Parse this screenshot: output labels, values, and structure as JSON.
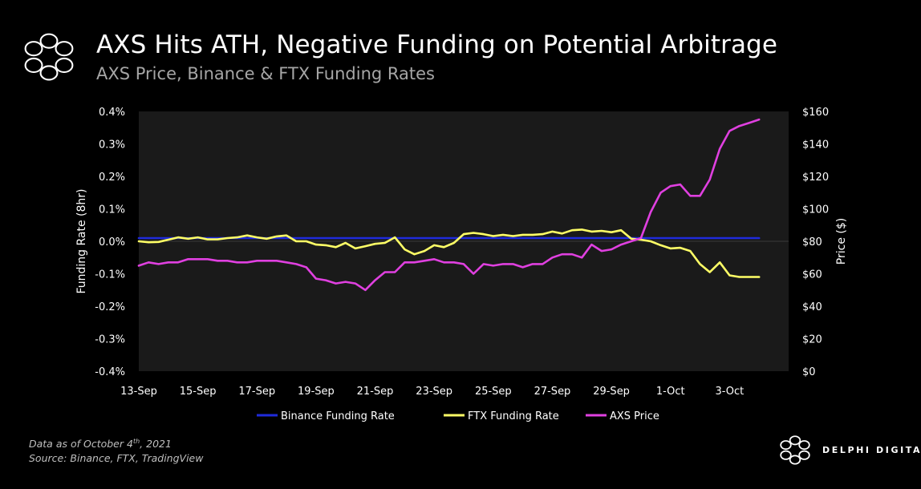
{
  "header": {
    "title": "AXS Hits ATH, Negative Funding on Potential Arbitrage",
    "subtitle": "AXS Price, Binance & FTX Funding Rates"
  },
  "footer": {
    "data_as_of_prefix": "Data as of October 4",
    "data_as_of_sup": "th",
    "data_as_of_suffix": ", 2021",
    "source": "Source: Binance, FTX, TradingView"
  },
  "brand": {
    "name": "DELPHI DIGITAL"
  },
  "chart_data": {
    "type": "line",
    "title": "AXS Hits ATH, Negative Funding on Potential Arbitrage",
    "subtitle": "AXS Price, Binance & FTX Funding Rates",
    "ylabel": "Funding Rate (8hr)",
    "y2label": "Price ($)",
    "ylim": [
      -0.4,
      0.4
    ],
    "y2lim": [
      0,
      160
    ],
    "xlim": [
      0,
      22
    ],
    "x_ticks": [
      {
        "x": 0,
        "label": "13-Sep"
      },
      {
        "x": 2,
        "label": "15-Sep"
      },
      {
        "x": 4,
        "label": "17-Sep"
      },
      {
        "x": 6,
        "label": "19-Sep"
      },
      {
        "x": 8,
        "label": "21-Sep"
      },
      {
        "x": 10,
        "label": "23-Sep"
      },
      {
        "x": 12,
        "label": "25-Sep"
      },
      {
        "x": 14,
        "label": "27-Sep"
      },
      {
        "x": 16,
        "label": "29-Sep"
      },
      {
        "x": 18,
        "label": "1-Oct"
      },
      {
        "x": 20,
        "label": "3-Oct"
      }
    ],
    "y_ticks": [
      "0.4%",
      "0.3%",
      "0.2%",
      "0.1%",
      "0.0%",
      "-0.1%",
      "-0.2%",
      "-0.3%",
      "-0.4%"
    ],
    "y2_ticks": [
      "$160",
      "$140",
      "$120",
      "$100",
      "$80",
      "$60",
      "$40",
      "$20",
      "$0"
    ],
    "legend_position": "bottom",
    "grid": false,
    "series": [
      {
        "name": "Binance Funding Rate",
        "axis": "left",
        "color": "#1f2bdb",
        "x": [
          0,
          0.33,
          0.67,
          1,
          1.33,
          1.67,
          2,
          2.33,
          2.67,
          3,
          3.33,
          3.67,
          4,
          4.33,
          4.67,
          5,
          5.33,
          5.67,
          6,
          6.33,
          6.67,
          7,
          7.33,
          7.67,
          8,
          8.33,
          8.67,
          9,
          9.33,
          9.67,
          10,
          10.33,
          10.67,
          11,
          11.33,
          11.67,
          12,
          12.33,
          12.67,
          13,
          13.33,
          13.67,
          14,
          14.33,
          14.67,
          15,
          15.33,
          15.67,
          16,
          16.33,
          16.67,
          17,
          17.33,
          17.67,
          18,
          18.33,
          18.67,
          19,
          19.33,
          19.67,
          20,
          20.33,
          20.67,
          21
        ],
        "values": [
          0.01,
          0.01,
          0.01,
          0.01,
          0.01,
          0.01,
          0.01,
          0.01,
          0.01,
          0.01,
          0.01,
          0.01,
          0.01,
          0.01,
          0.01,
          0.01,
          0.01,
          0.01,
          0.01,
          0.01,
          0.01,
          0.01,
          0.01,
          0.01,
          0.01,
          0.01,
          0.01,
          0.01,
          0.01,
          0.01,
          0.01,
          0.01,
          0.01,
          0.01,
          0.01,
          0.01,
          0.01,
          0.01,
          0.01,
          0.01,
          0.01,
          0.01,
          0.01,
          0.01,
          0.01,
          0.01,
          0.01,
          0.01,
          0.01,
          0.01,
          0.01,
          0.01,
          0.01,
          0.01,
          0.01,
          0.01,
          0.01,
          0.01,
          0.01,
          0.01,
          0.01,
          0.01,
          0.01,
          0.01
        ]
      },
      {
        "name": "FTX Funding Rate",
        "axis": "left",
        "color": "#ffff66",
        "x": [
          0,
          0.33,
          0.67,
          1,
          1.33,
          1.67,
          2,
          2.33,
          2.67,
          3,
          3.33,
          3.67,
          4,
          4.33,
          4.67,
          5,
          5.33,
          5.67,
          6,
          6.33,
          6.67,
          7,
          7.33,
          7.67,
          8,
          8.33,
          8.67,
          9,
          9.33,
          9.67,
          10,
          10.33,
          10.67,
          11,
          11.33,
          11.67,
          12,
          12.33,
          12.67,
          13,
          13.33,
          13.67,
          14,
          14.33,
          14.67,
          15,
          15.33,
          15.67,
          16,
          16.33,
          16.67,
          17,
          17.33,
          17.67,
          18,
          18.33,
          18.67,
          19,
          19.33,
          19.67,
          20,
          20.33,
          20.67,
          21
        ],
        "values": [
          0.0,
          -0.003,
          -0.002,
          0.005,
          0.012,
          0.008,
          0.012,
          0.006,
          0.006,
          0.01,
          0.012,
          0.018,
          0.012,
          0.008,
          0.015,
          0.018,
          0.0,
          0.0,
          -0.01,
          -0.012,
          -0.018,
          -0.005,
          -0.022,
          -0.015,
          -0.008,
          -0.005,
          0.012,
          -0.025,
          -0.04,
          -0.03,
          -0.012,
          -0.018,
          -0.005,
          0.022,
          0.026,
          0.022,
          0.016,
          0.02,
          0.016,
          0.02,
          0.02,
          0.022,
          0.03,
          0.024,
          0.034,
          0.036,
          0.03,
          0.032,
          0.028,
          0.034,
          0.008,
          0.005,
          0.0,
          -0.012,
          -0.022,
          -0.02,
          -0.03,
          -0.07,
          -0.095,
          -0.065,
          -0.105,
          -0.11,
          -0.11,
          -0.11
        ]
      },
      {
        "name": "AXS Price",
        "axis": "right",
        "color": "#e040e0",
        "x": [
          0,
          0.33,
          0.67,
          1,
          1.33,
          1.67,
          2,
          2.33,
          2.67,
          3,
          3.33,
          3.67,
          4,
          4.33,
          4.67,
          5,
          5.33,
          5.67,
          6,
          6.33,
          6.67,
          7,
          7.33,
          7.67,
          8,
          8.33,
          8.67,
          9,
          9.33,
          9.67,
          10,
          10.33,
          10.67,
          11,
          11.33,
          11.67,
          12,
          12.33,
          12.67,
          13,
          13.33,
          13.67,
          14,
          14.33,
          14.67,
          15,
          15.33,
          15.67,
          16,
          16.33,
          16.67,
          17,
          17.33,
          17.67,
          18,
          18.33,
          18.67,
          19,
          19.33,
          19.67,
          20,
          20.33,
          20.67,
          21
        ],
        "values": [
          65,
          67,
          66,
          67,
          67,
          69,
          69,
          69,
          68,
          68,
          67,
          67,
          68,
          68,
          68,
          67,
          66,
          64,
          57,
          56,
          54,
          55,
          54,
          50,
          56,
          61,
          61,
          67,
          67,
          68,
          69,
          67,
          67,
          66,
          60,
          66,
          65,
          66,
          66,
          64,
          66,
          66,
          70,
          72,
          72,
          70,
          78,
          74,
          75,
          78,
          80,
          82,
          98,
          110,
          114,
          115,
          108,
          108,
          118,
          137,
          148,
          151,
          153,
          155
        ]
      }
    ]
  }
}
